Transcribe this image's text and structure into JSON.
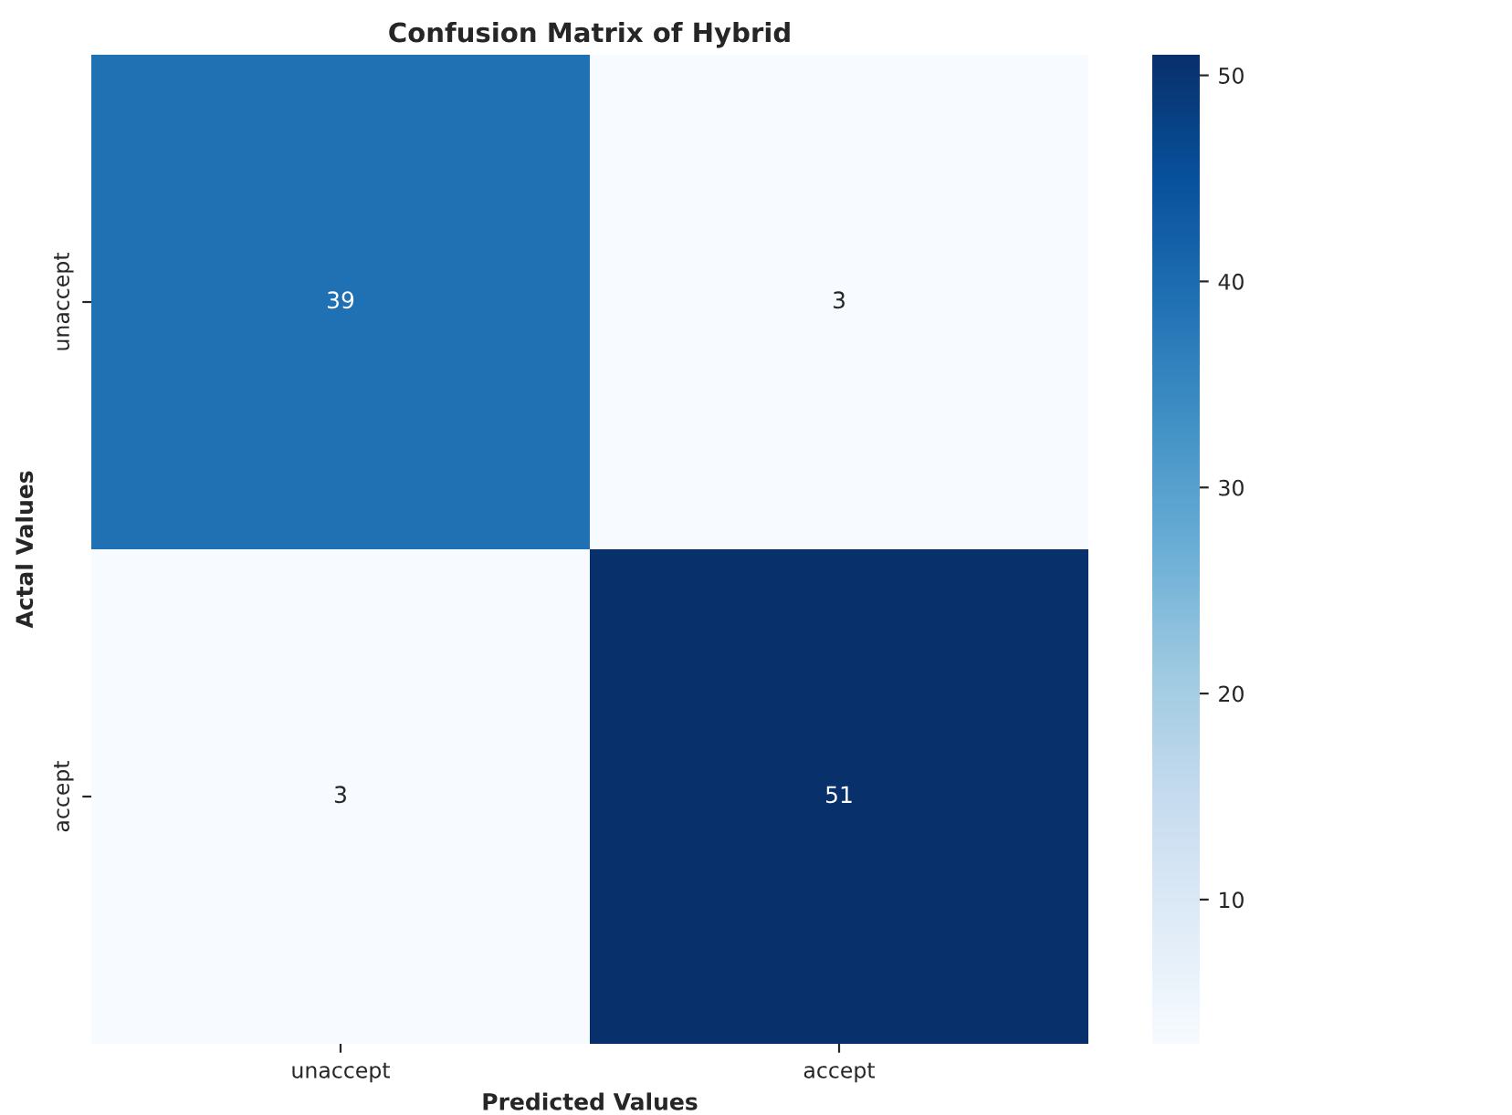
{
  "chart_data": {
    "type": "heatmap",
    "title": "Confusion Matrix of Hybrid",
    "xlabel": "Predicted Values",
    "ylabel": "Actal Values",
    "categories": [
      "unaccept",
      "accept"
    ],
    "y_categories": [
      "unaccept",
      "accept"
    ],
    "cells": [
      [
        39,
        3
      ],
      [
        3,
        51
      ]
    ],
    "data_labels": true,
    "clim": [
      3,
      51
    ],
    "cticks": [
      10,
      20,
      30,
      40,
      50
    ]
  }
}
